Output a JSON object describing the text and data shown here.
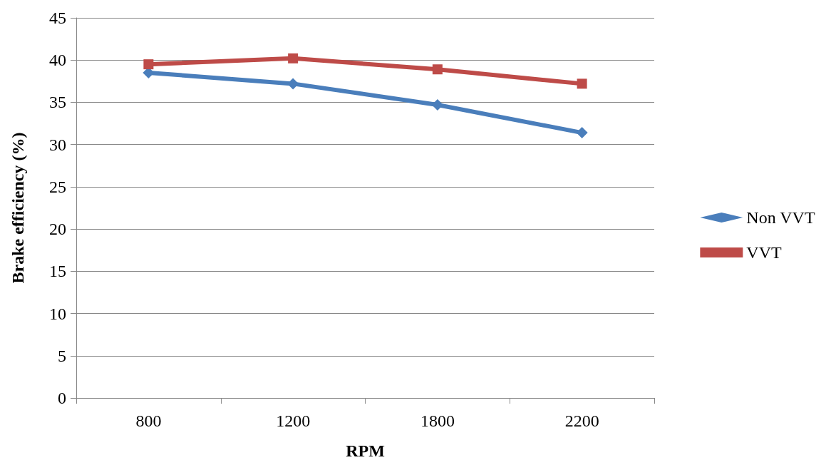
{
  "chart_data": {
    "type": "line",
    "xlabel": "RPM",
    "ylabel": "Brake efficiency (%)",
    "categories": [
      "800",
      "1200",
      "1800",
      "2200"
    ],
    "series": [
      {
        "name": "Non VVT",
        "color": "#4a7ebb",
        "marker": "diamond",
        "values": [
          38.5,
          37.2,
          34.7,
          31.4
        ]
      },
      {
        "name": "VVT",
        "color": "#be4b48",
        "marker": "square",
        "values": [
          39.5,
          40.2,
          38.9,
          37.2
        ]
      }
    ],
    "ylim": [
      0,
      45
    ],
    "yticks": [
      0,
      5,
      10,
      15,
      20,
      25,
      30,
      35,
      40,
      45
    ],
    "grid": "y",
    "legend": "right",
    "line_style": "solid"
  }
}
